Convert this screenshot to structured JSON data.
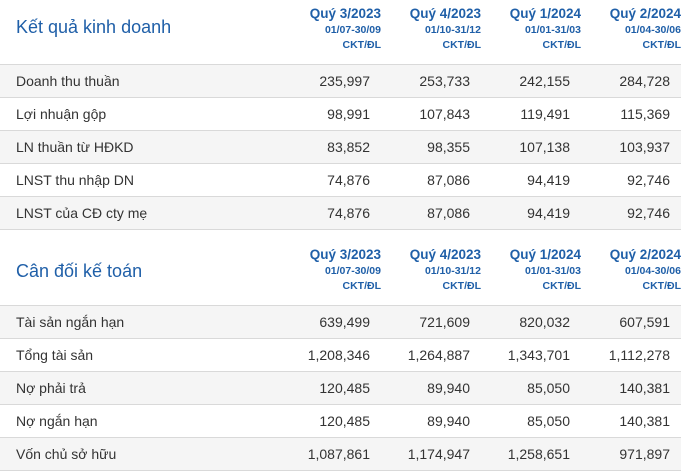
{
  "income": {
    "title": "Kết quả kinh doanh",
    "columns": [
      {
        "quarter": "Quý 3/2023",
        "range": "01/07-30/09",
        "audit": "CKT/ĐL"
      },
      {
        "quarter": "Quý 4/2023",
        "range": "01/10-31/12",
        "audit": "CKT/ĐL"
      },
      {
        "quarter": "Quý 1/2024",
        "range": "01/01-31/03",
        "audit": "CKT/ĐL"
      },
      {
        "quarter": "Quý 2/2024",
        "range": "01/04-30/06",
        "audit": "CKT/ĐL"
      }
    ],
    "rows": [
      {
        "label": "Doanh thu thuần",
        "values": [
          "235,997",
          "253,733",
          "242,155",
          "284,728"
        ]
      },
      {
        "label": "Lợi nhuận gộp",
        "values": [
          "98,991",
          "107,843",
          "119,491",
          "115,369"
        ]
      },
      {
        "label": "LN thuần từ HĐKD",
        "values": [
          "83,852",
          "98,355",
          "107,138",
          "103,937"
        ]
      },
      {
        "label": "LNST thu nhập DN",
        "values": [
          "74,876",
          "87,086",
          "94,419",
          "92,746"
        ]
      },
      {
        "label": "LNST của CĐ cty mẹ",
        "values": [
          "74,876",
          "87,086",
          "94,419",
          "92,746"
        ]
      }
    ]
  },
  "balance": {
    "title": "Cân đối kế toán",
    "columns": [
      {
        "quarter": "Quý 3/2023",
        "range": "01/07-30/09",
        "audit": "CKT/ĐL"
      },
      {
        "quarter": "Quý 4/2023",
        "range": "01/10-31/12",
        "audit": "CKT/ĐL"
      },
      {
        "quarter": "Quý 1/2024",
        "range": "01/01-31/03",
        "audit": "CKT/ĐL"
      },
      {
        "quarter": "Quý 2/2024",
        "range": "01/04-30/06",
        "audit": "CKT/ĐL"
      }
    ],
    "rows": [
      {
        "label": "Tài sản ngắn hạn",
        "values": [
          "639,499",
          "721,609",
          "820,032",
          "607,591"
        ]
      },
      {
        "label": "Tổng tài sản",
        "values": [
          "1,208,346",
          "1,264,887",
          "1,343,701",
          "1,112,278"
        ]
      },
      {
        "label": "Nợ phải trả",
        "values": [
          "120,485",
          "89,940",
          "85,050",
          "140,381"
        ]
      },
      {
        "label": "Nợ ngắn hạn",
        "values": [
          "120,485",
          "89,940",
          "85,050",
          "140,381"
        ]
      },
      {
        "label": "Vốn chủ sở hữu",
        "values": [
          "1,087,861",
          "1,174,947",
          "1,258,651",
          "971,897"
        ]
      }
    ]
  }
}
